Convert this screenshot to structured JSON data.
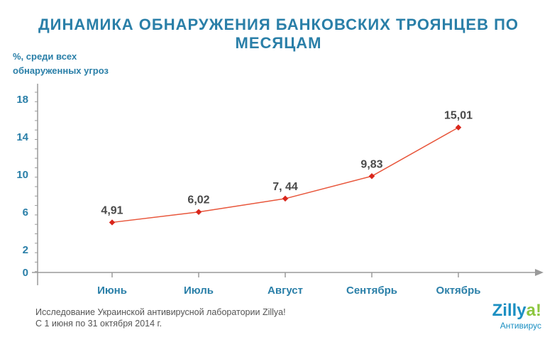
{
  "chart_data": {
    "type": "line",
    "title": "ДИНАМИКА ОБНАРУЖЕНИЯ БАНКОВСКИХ ТРОЯНЦЕВ ПО МЕСЯЦАМ",
    "ylabel_lines": [
      "%, среди всех",
      "обнаруженных угроз"
    ],
    "xlabel": "",
    "categories": [
      "Июнь",
      "Июль",
      "Август",
      "Сентябрь",
      "Октябрь"
    ],
    "series": [
      {
        "values": [
          4.91,
          6.02,
          7.44,
          9.83,
          15.01
        ],
        "labels": [
          "4,91",
          "6,02",
          "7, 44",
          "9,83",
          "15,01"
        ],
        "color": "#e8553a",
        "marker_color": "#d9261c"
      }
    ],
    "yticks": [
      "0",
      "2",
      "6",
      "10",
      "14",
      "18"
    ],
    "ytick_values": [
      0,
      2,
      6,
      10,
      14,
      18
    ],
    "axis_color": "#9a9a9a",
    "grid": false
  },
  "footnote": {
    "line1": "Исследование Украинской антивирусной лаборатории Zillya!",
    "line2": "С 1 июня по 31 октября 2014 г."
  },
  "logo": {
    "name_main": "Zilly",
    "name_accent": "a!",
    "subtitle": "Антивирус"
  }
}
